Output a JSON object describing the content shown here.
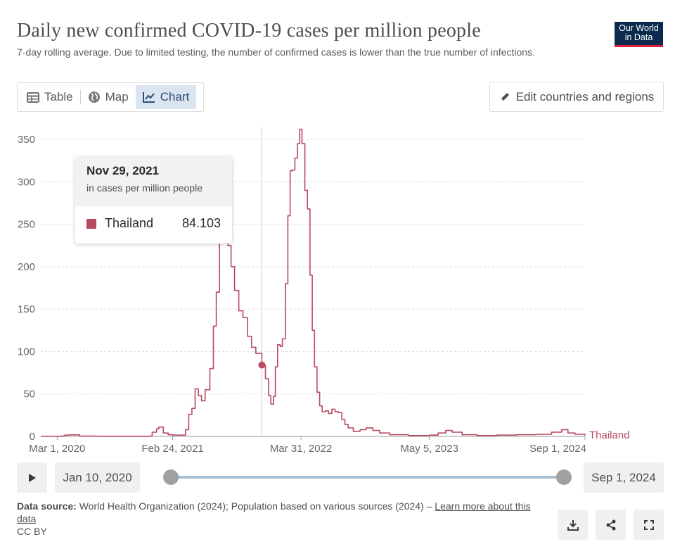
{
  "header": {
    "title": "Daily new confirmed COVID-19 cases per million people",
    "subtitle": "7-day rolling average. Due to limited testing, the number of confirmed cases is lower than the true number of infections.",
    "logo_line1": "Our World",
    "logo_line2": "in Data"
  },
  "tabs": [
    {
      "label": "Table",
      "icon": "table-icon"
    },
    {
      "label": "Map",
      "icon": "globe-icon"
    },
    {
      "label": "Chart",
      "icon": "line-chart-icon",
      "active": true
    }
  ],
  "edit_button_label": "Edit countries and regions",
  "tooltip": {
    "date": "Nov 29, 2021",
    "unit": "in cases per million people",
    "series": "Thailand",
    "value": "84.103"
  },
  "timeline": {
    "start_label": "Jan 10, 2020",
    "end_label": "Sep 1, 2024",
    "start_fraction": 0.0,
    "end_fraction": 1.0
  },
  "footer": {
    "source_label": "Data source:",
    "source_text": "World Health Organization (2024); Population based on various sources (2024) – ",
    "learn_more": "Learn more about this data",
    "license": "CC BY"
  },
  "colors": {
    "series": "#b94a5f",
    "accent": "#2e4d78",
    "grid": "#dddddd"
  },
  "chart_data": {
    "type": "line",
    "title": "Daily new confirmed COVID-19 cases per million people",
    "ylim": [
      0,
      365
    ],
    "yticks": [
      0,
      50,
      100,
      150,
      200,
      250,
      300,
      350
    ],
    "xticks": [
      {
        "date": "2020-03-01",
        "label": "Mar 1, 2020"
      },
      {
        "date": "2021-02-24",
        "label": "Feb 24, 2021"
      },
      {
        "date": "2022-03-31",
        "label": "Mar 31, 2022"
      },
      {
        "date": "2023-05-05",
        "label": "May 5, 2023"
      },
      {
        "date": "2024-09-01",
        "label": "Sep 1, 2024"
      }
    ],
    "xlim": [
      "2020-01-10",
      "2024-09-01"
    ],
    "grid": true,
    "series": [
      {
        "name": "Thailand",
        "color": "#b94a5f",
        "points": [
          [
            "2020-01-10",
            0
          ],
          [
            "2020-03-15",
            0.5
          ],
          [
            "2020-03-25",
            1.5
          ],
          [
            "2020-04-10",
            1.8
          ],
          [
            "2020-05-10",
            0.3
          ],
          [
            "2020-07-01",
            0.1
          ],
          [
            "2020-10-01",
            0.1
          ],
          [
            "2020-12-15",
            0.5
          ],
          [
            "2020-12-22",
            5
          ],
          [
            "2021-01-05",
            9
          ],
          [
            "2021-01-12",
            11
          ],
          [
            "2021-01-26",
            4
          ],
          [
            "2021-02-10",
            2
          ],
          [
            "2021-02-24",
            1.5
          ],
          [
            "2021-03-15",
            1.5
          ],
          [
            "2021-04-05",
            8
          ],
          [
            "2021-04-15",
            26
          ],
          [
            "2021-04-25",
            33
          ],
          [
            "2021-05-05",
            56
          ],
          [
            "2021-05-15",
            48
          ],
          [
            "2021-05-25",
            42
          ],
          [
            "2021-06-05",
            55
          ],
          [
            "2021-06-20",
            80
          ],
          [
            "2021-07-01",
            130
          ],
          [
            "2021-07-10",
            170
          ],
          [
            "2021-07-20",
            230
          ],
          [
            "2021-07-28",
            262
          ],
          [
            "2021-08-05",
            248
          ],
          [
            "2021-08-15",
            225
          ],
          [
            "2021-08-25",
            200
          ],
          [
            "2021-09-05",
            172
          ],
          [
            "2021-09-18",
            148
          ],
          [
            "2021-10-01",
            140
          ],
          [
            "2021-10-15",
            118
          ],
          [
            "2021-10-28",
            105
          ],
          [
            "2021-11-10",
            98
          ],
          [
            "2021-11-29",
            84.103
          ],
          [
            "2021-12-10",
            68
          ],
          [
            "2021-12-20",
            48
          ],
          [
            "2021-12-27",
            38
          ],
          [
            "2022-01-04",
            47
          ],
          [
            "2022-01-10",
            82
          ],
          [
            "2022-01-17",
            108
          ],
          [
            "2022-01-25",
            106
          ],
          [
            "2022-02-01",
            115
          ],
          [
            "2022-02-10",
            180
          ],
          [
            "2022-02-18",
            260
          ],
          [
            "2022-02-25",
            313
          ],
          [
            "2022-03-05",
            314
          ],
          [
            "2022-03-12",
            328
          ],
          [
            "2022-03-20",
            345
          ],
          [
            "2022-03-27",
            362
          ],
          [
            "2022-04-03",
            345
          ],
          [
            "2022-04-12",
            290
          ],
          [
            "2022-04-20",
            268
          ],
          [
            "2022-04-28",
            190
          ],
          [
            "2022-05-05",
            125
          ],
          [
            "2022-05-12",
            82
          ],
          [
            "2022-05-20",
            52
          ],
          [
            "2022-05-28",
            36
          ],
          [
            "2022-06-05",
            29
          ],
          [
            "2022-06-15",
            30
          ],
          [
            "2022-06-25",
            27
          ],
          [
            "2022-07-05",
            32
          ],
          [
            "2022-07-15",
            29
          ],
          [
            "2022-07-25",
            28
          ],
          [
            "2022-08-05",
            20
          ],
          [
            "2022-08-15",
            14
          ],
          [
            "2022-08-25",
            10
          ],
          [
            "2022-09-10",
            6
          ],
          [
            "2022-10-01",
            8
          ],
          [
            "2022-10-20",
            10
          ],
          [
            "2022-11-10",
            7
          ],
          [
            "2022-12-01",
            4
          ],
          [
            "2023-01-01",
            2
          ],
          [
            "2023-03-01",
            1
          ],
          [
            "2023-05-05",
            1.5
          ],
          [
            "2023-06-01",
            4
          ],
          [
            "2023-06-25",
            7
          ],
          [
            "2023-07-15",
            5
          ],
          [
            "2023-08-15",
            2
          ],
          [
            "2023-10-01",
            1
          ],
          [
            "2023-12-01",
            1.5
          ],
          [
            "2024-02-01",
            2
          ],
          [
            "2024-04-01",
            2.5
          ],
          [
            "2024-05-20",
            5
          ],
          [
            "2024-06-20",
            8
          ],
          [
            "2024-07-10",
            4
          ],
          [
            "2024-08-01",
            2.5
          ],
          [
            "2024-09-01",
            1
          ]
        ]
      }
    ],
    "hover": {
      "date": "2021-11-29",
      "value": 84.103
    }
  }
}
